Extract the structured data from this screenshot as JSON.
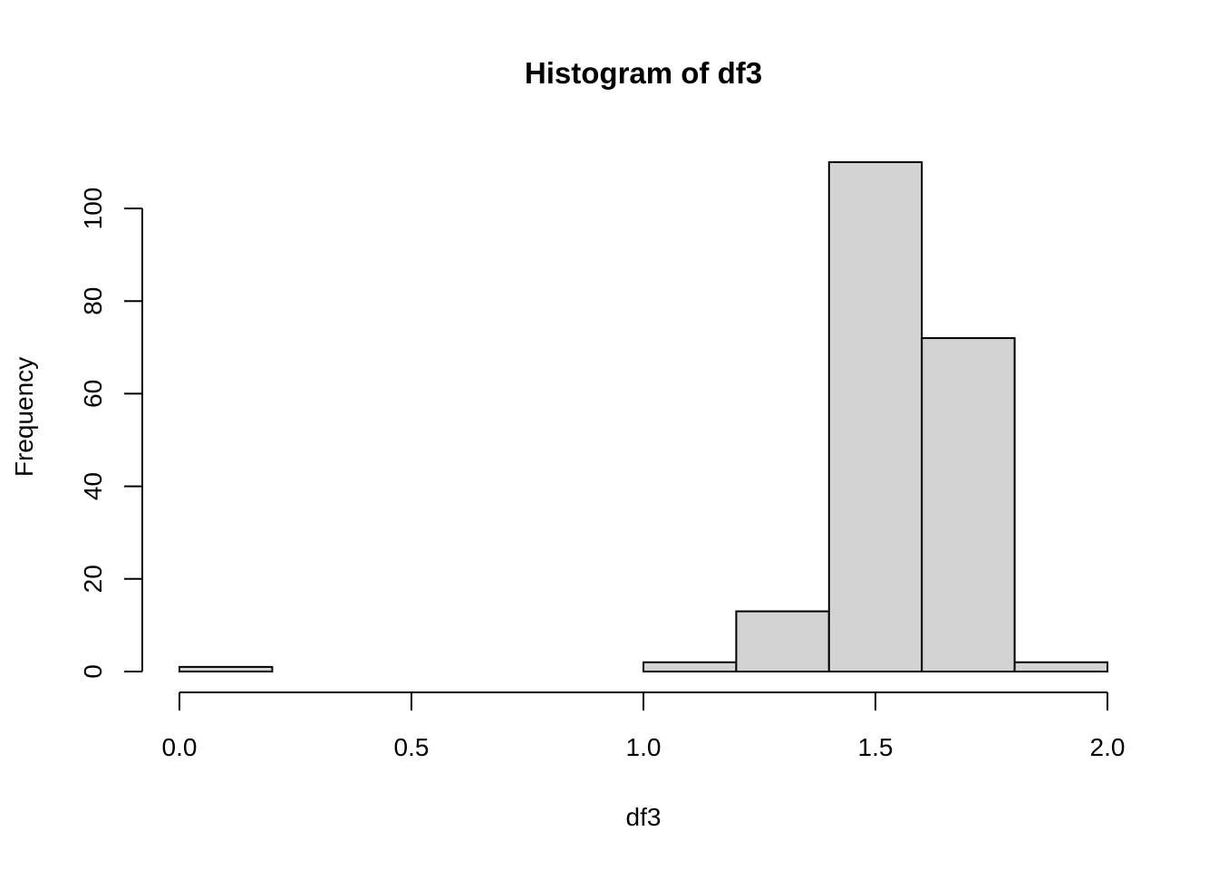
{
  "chart_data": {
    "type": "bar",
    "title": "Histogram of df3",
    "xlabel": "df3",
    "ylabel": "Frequency",
    "bins": [
      {
        "start": 0.0,
        "end": 0.2,
        "count": 1
      },
      {
        "start": 0.2,
        "end": 0.4,
        "count": 0
      },
      {
        "start": 0.4,
        "end": 0.6,
        "count": 0
      },
      {
        "start": 0.6,
        "end": 0.8,
        "count": 0
      },
      {
        "start": 0.8,
        "end": 1.0,
        "count": 0
      },
      {
        "start": 1.0,
        "end": 1.2,
        "count": 2
      },
      {
        "start": 1.2,
        "end": 1.4,
        "count": 13
      },
      {
        "start": 1.4,
        "end": 1.6,
        "count": 110
      },
      {
        "start": 1.6,
        "end": 1.8,
        "count": 72
      },
      {
        "start": 1.8,
        "end": 2.0,
        "count": 2
      }
    ],
    "xlim": [
      0.0,
      2.0
    ],
    "ylim": [
      0,
      100
    ],
    "x_ticks": [
      "0.0",
      "0.5",
      "1.0",
      "1.5",
      "2.0"
    ],
    "y_ticks": [
      "0",
      "20",
      "40",
      "60",
      "80",
      "100"
    ],
    "grid": false,
    "colors": {
      "bar_fill": "#d3d3d3",
      "bar_stroke": "#000000"
    }
  }
}
